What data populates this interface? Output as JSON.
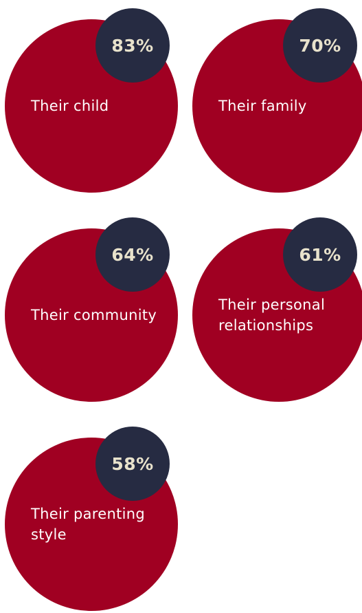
{
  "chart_data": {
    "type": "bubble-stats",
    "colors": {
      "circle": "#a00022",
      "badge": "#262b42",
      "badge_text": "#e8e2cc",
      "label_text": "#ffffff"
    },
    "items": [
      {
        "label": "Their child",
        "value": 83,
        "value_text": "83%"
      },
      {
        "label": "Their family",
        "value": 70,
        "value_text": "70%"
      },
      {
        "label": "Their community",
        "value": 64,
        "value_text": "64%"
      },
      {
        "label": "Their personal\nrelationships",
        "value": 61,
        "value_text": "61%"
      },
      {
        "label": "Their parenting\nstyle",
        "value": 58,
        "value_text": "58%"
      }
    ]
  }
}
